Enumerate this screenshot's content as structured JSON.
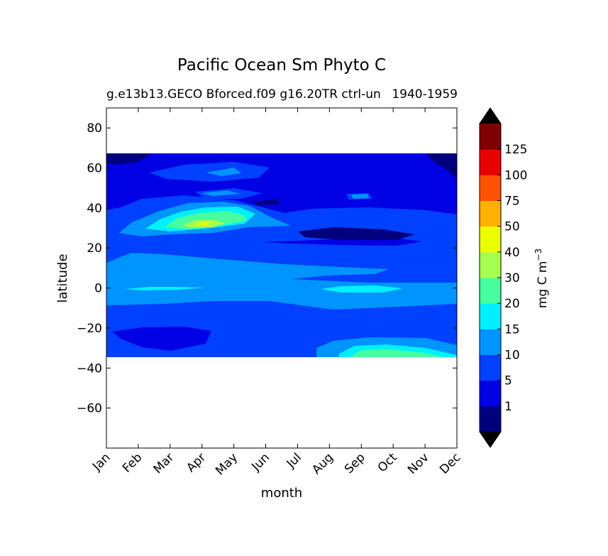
{
  "chart_data": {
    "type": "heatmap",
    "title": "Pacific Ocean Sm Phyto C",
    "subtitle_left": "g.e13b13.GECO Bforced.f09 g16.20TR ctrl-un",
    "subtitle_right": "1940-1959",
    "xlabel": "month",
    "ylabel": "latitude",
    "x_ticks": [
      "Jan",
      "Feb",
      "Mar",
      "Apr",
      "May",
      "Jun",
      "Jul",
      "Aug",
      "Sep",
      "Oct",
      "Nov",
      "Dec"
    ],
    "y_ticks": [
      80,
      60,
      40,
      20,
      0,
      -20,
      -40,
      -60
    ],
    "ylim": [
      -80,
      90
    ],
    "data_lat_range": [
      -34,
      67
    ],
    "colorbar": {
      "label": "mg C m",
      "label_sup": "−3",
      "tick_labels": [
        "1",
        "5",
        "10",
        "15",
        "20",
        "30",
        "40",
        "50",
        "75",
        "100",
        "125"
      ],
      "levels": [
        0,
        1,
        5,
        10,
        15,
        20,
        30,
        40,
        50,
        75,
        100,
        125,
        150
      ],
      "colors": [
        "#00007f",
        "#0000e5",
        "#0040ff",
        "#0094ff",
        "#00f0ff",
        "#46ff9e",
        "#a6ff4f",
        "#eaff00",
        "#ffb000",
        "#ff5200",
        "#e80000",
        "#7f0000"
      ],
      "extend_low_color": "#000000",
      "extend_high_color": "#000000"
    }
  }
}
